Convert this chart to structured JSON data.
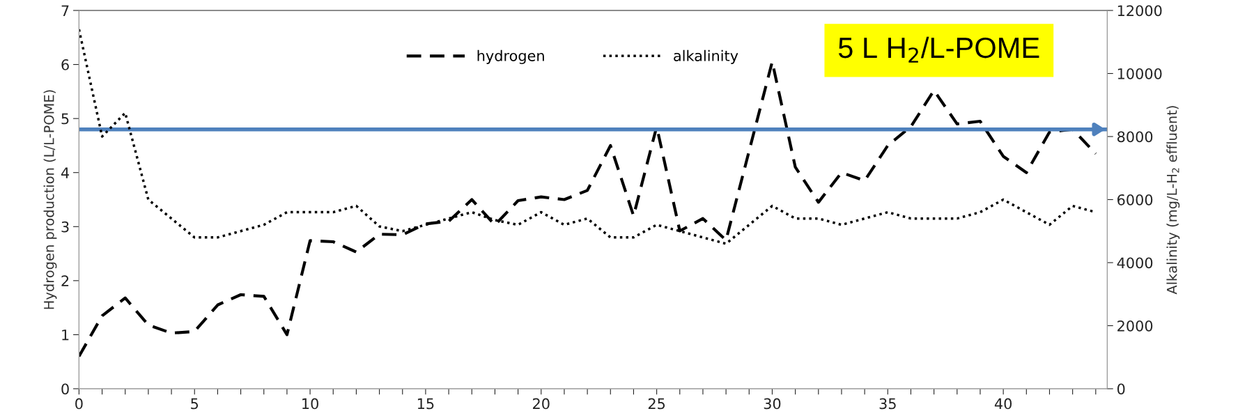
{
  "chart_data": {
    "type": "line",
    "x": [
      0,
      1,
      2,
      3,
      4,
      5,
      6,
      7,
      8,
      9,
      10,
      11,
      12,
      13,
      14,
      15,
      16,
      17,
      18,
      19,
      20,
      21,
      22,
      23,
      24,
      25,
      26,
      27,
      28,
      29,
      30,
      31,
      32,
      33,
      34,
      35,
      36,
      37,
      38,
      39,
      40,
      41,
      42,
      43,
      44
    ],
    "series": [
      {
        "name": "hydrogen",
        "color": "#000000",
        "line_style": "dashed",
        "values": [
          0.6,
          1.35,
          1.68,
          1.18,
          1.03,
          1.06,
          1.55,
          1.74,
          1.71,
          1.0,
          2.74,
          2.72,
          2.53,
          2.86,
          2.85,
          3.05,
          3.1,
          3.5,
          3.03,
          3.48,
          3.55,
          3.5,
          3.67,
          4.5,
          3.2,
          4.85,
          2.92,
          3.15,
          2.75,
          4.4,
          6.05,
          4.1,
          3.45,
          4.0,
          3.85,
          4.5,
          4.85,
          5.52,
          4.9,
          4.95,
          4.3,
          4.0,
          4.75,
          4.8,
          4.35
        ]
      },
      {
        "name": "alkalinity",
        "color": "#000000",
        "line_style": "dotted",
        "axis": "y2",
        "values": [
          11400,
          8000,
          8750,
          6000,
          5400,
          4800,
          4800,
          5000,
          5200,
          5600,
          5600,
          5600,
          5800,
          5150,
          5000,
          5200,
          5400,
          5600,
          5350,
          5200,
          5600,
          5200,
          5400,
          4800,
          4800,
          5200,
          5000,
          4800,
          4600,
          5200,
          5800,
          5400,
          5400,
          5200,
          5400,
          5600,
          5400,
          5400,
          5400,
          5600,
          6000,
          5600,
          5200,
          5800,
          5600
        ]
      }
    ],
    "ylabel": "Hydrogen production (L/L-POME)",
    "y2label": "Alkalinity (mg/L-H$_{2}$ effluent)",
    "xlim": [
      0,
      44.5
    ],
    "xticks": [
      0,
      {
        "value": 1,
        "label": null
      },
      {
        "value": 2,
        "label": null
      },
      {
        "value": 3,
        "label": null
      },
      {
        "value": 4,
        "label": null
      },
      5,
      {
        "value": 6,
        "label": null
      },
      {
        "value": 7,
        "label": null
      },
      {
        "value": 8,
        "label": null
      },
      {
        "value": 9,
        "label": null
      },
      10,
      {
        "value": 11,
        "label": null
      },
      {
        "value": 12,
        "label": null
      },
      {
        "value": 13,
        "label": null
      },
      {
        "value": 14,
        "label": null
      },
      15,
      {
        "value": 16,
        "label": null
      },
      {
        "value": 17,
        "label": null
      },
      {
        "value": 18,
        "label": null
      },
      {
        "value": 19,
        "label": null
      },
      20,
      {
        "value": 21,
        "label": null
      },
      {
        "value": 22,
        "label": null
      },
      {
        "value": 23,
        "label": null
      },
      {
        "value": 24,
        "label": null
      },
      25,
      {
        "value": 26,
        "label": null
      },
      {
        "value": 27,
        "label": null
      },
      {
        "value": 28,
        "label": null
      },
      {
        "value": 29,
        "label": null
      },
      30,
      {
        "value": 31,
        "label": null
      },
      {
        "value": 32,
        "label": null
      },
      {
        "value": 33,
        "label": null
      },
      {
        "value": 34,
        "label": null
      },
      35,
      {
        "value": 36,
        "label": null
      },
      {
        "value": 37,
        "label": null
      },
      {
        "value": 38,
        "label": null
      },
      {
        "value": 39,
        "label": null
      },
      40,
      {
        "value": 41,
        "label": null
      },
      {
        "value": 42,
        "label": null
      },
      {
        "value": 43,
        "label": null
      },
      {
        "value": 44,
        "label": null
      }
    ],
    "ylim": [
      0,
      7
    ],
    "yticks": [
      0,
      1,
      2,
      3,
      4,
      5,
      6,
      7
    ],
    "y2lim": [
      0,
      12000
    ],
    "y2ticks": [
      0,
      2000,
      4000,
      6000,
      8000,
      10000,
      12000
    ],
    "ref_lines": [
      {
        "axis": "y",
        "value": 4.8,
        "color": "#4f81bd"
      }
    ],
    "annotations": [
      "5 L H$_{2}$/L-POME"
    ],
    "legend": "top",
    "grid": false,
    "marker": "none"
  }
}
